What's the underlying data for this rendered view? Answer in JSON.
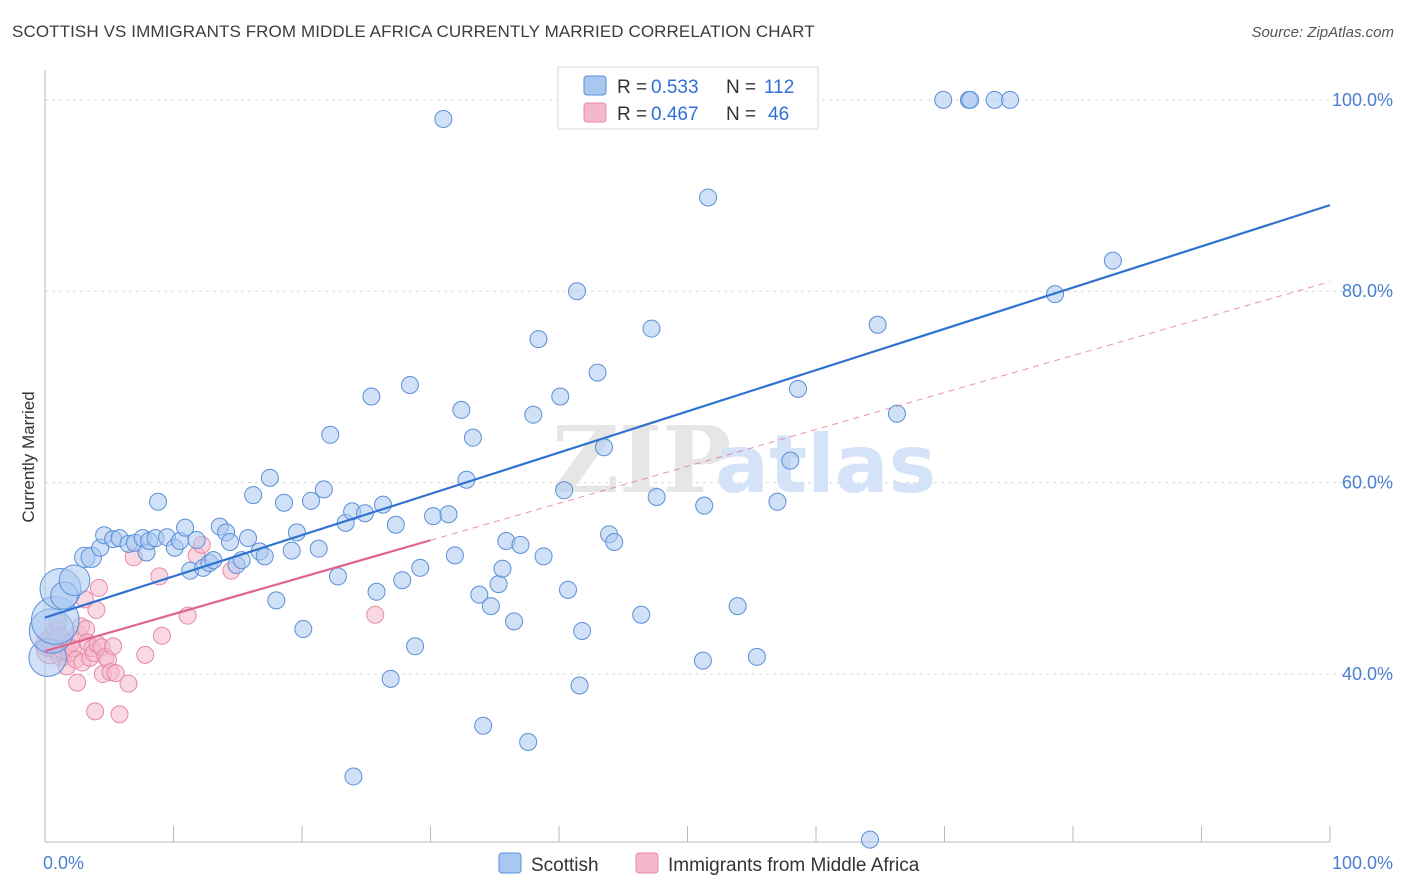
{
  "header": {
    "title": "SCOTTISH VS IMMIGRANTS FROM MIDDLE AFRICA CURRENTLY MARRIED CORRELATION CHART",
    "source": "Source: ZipAtlas.com"
  },
  "watermark": {
    "zip": "ZIP",
    "atlas": "atlas"
  },
  "legend": {
    "items": [
      {
        "r_label": "R =",
        "r_value": "0.533",
        "n_label": "N =",
        "n_value": "112"
      },
      {
        "r_label": "R =",
        "r_value": "0.467",
        "n_label": "N =",
        "n_value": "46"
      }
    ]
  },
  "bottom_legend": {
    "items": [
      {
        "label": "Scottish"
      },
      {
        "label": "Immigrants from Middle Africa"
      }
    ]
  },
  "colors": {
    "blue_fill": "#a9c8f0",
    "blue_stroke": "#5b8fd9",
    "blue_line": "#2f72d0",
    "pink_fill": "#f5b8cb",
    "pink_stroke": "#e58aa8",
    "pink_line": "#e0628e",
    "grid": "#d9d9d9",
    "tick_label": "#4a7fd0"
  },
  "chart_data": {
    "type": "scatter",
    "title": "SCOTTISH VS IMMIGRANTS FROM MIDDLE AFRICA CURRENTLY MARRIED CORRELATION CHART",
    "xlabel": "",
    "ylabel": "Currently Married",
    "xlim": [
      0,
      100
    ],
    "ylim": [
      22,
      102
    ],
    "x_tick_labels": [
      "0.0%",
      "100.0%"
    ],
    "y_ticks": [
      40,
      60,
      80,
      100
    ],
    "y_tick_labels": [
      "40.0%",
      "60.0%",
      "80.0%",
      "100.0%"
    ],
    "grid": true,
    "legend_position": "top-center",
    "series": [
      {
        "name": "Scottish",
        "color": "#a9c8f0",
        "r": 0.533,
        "n": 112,
        "trendline": {
          "x": [
            0,
            100
          ],
          "y": [
            45.9,
            89.0
          ]
        },
        "points": [
          [
            0.2,
            41.7,
            2.2
          ],
          [
            0.5,
            44.5,
            2.6
          ],
          [
            0.8,
            45.6,
            2.8
          ],
          [
            1.2,
            48.9,
            2.4
          ],
          [
            1.5,
            48.2,
            1.6
          ],
          [
            2.3,
            49.8,
            1.8
          ],
          [
            3.1,
            52.2,
            1.2
          ],
          [
            3.6,
            52.2,
            1.2
          ],
          [
            4.3,
            53.2,
            1.0
          ],
          [
            4.6,
            54.5,
            1.0
          ],
          [
            5.3,
            54.1,
            1.0
          ],
          [
            5.8,
            54.2,
            1.0
          ],
          [
            6.5,
            53.6,
            1.0
          ],
          [
            7.0,
            53.7,
            1.0
          ],
          [
            7.6,
            54.2,
            1.0
          ],
          [
            7.9,
            52.7,
            1.0
          ],
          [
            8.1,
            53.9,
            1.0
          ],
          [
            8.6,
            54.2,
            1.0
          ],
          [
            8.8,
            58.0,
            1.0
          ],
          [
            9.5,
            54.3,
            1.0
          ],
          [
            10.1,
            53.2,
            1.0
          ],
          [
            10.5,
            53.9,
            1.0
          ],
          [
            10.9,
            55.3,
            1.0
          ],
          [
            11.3,
            50.8,
            1.0
          ],
          [
            11.8,
            54.0,
            1.0
          ],
          [
            12.3,
            51.1,
            1.0
          ],
          [
            12.8,
            51.6,
            1.0
          ],
          [
            13.1,
            51.9,
            1.0
          ],
          [
            13.6,
            55.4,
            1.0
          ],
          [
            14.1,
            54.8,
            1.0
          ],
          [
            14.4,
            53.8,
            1.0
          ],
          [
            14.9,
            51.4,
            1.0
          ],
          [
            15.3,
            51.9,
            1.0
          ],
          [
            15.8,
            54.2,
            1.0
          ],
          [
            16.2,
            58.7,
            1.0
          ],
          [
            16.7,
            52.8,
            1.0
          ],
          [
            17.1,
            52.3,
            1.0
          ],
          [
            17.5,
            60.5,
            1.0
          ],
          [
            18.0,
            47.7,
            1.0
          ],
          [
            18.6,
            57.9,
            1.0
          ],
          [
            19.2,
            52.9,
            1.0
          ],
          [
            19.6,
            54.8,
            1.0
          ],
          [
            20.1,
            44.7,
            1.0
          ],
          [
            20.7,
            58.1,
            1.0
          ],
          [
            21.3,
            53.1,
            1.0
          ],
          [
            21.7,
            59.3,
            1.0
          ],
          [
            22.2,
            65.0,
            1.0
          ],
          [
            22.8,
            50.2,
            1.0
          ],
          [
            23.4,
            55.8,
            1.0
          ],
          [
            23.9,
            57.0,
            1.0
          ],
          [
            24.9,
            56.8,
            1.0
          ],
          [
            25.4,
            69.0,
            1.0
          ],
          [
            25.8,
            48.6,
            1.0
          ],
          [
            26.3,
            57.7,
            1.0
          ],
          [
            26.9,
            39.5,
            1.0
          ],
          [
            27.3,
            55.6,
            1.0
          ],
          [
            27.8,
            49.8,
            1.0
          ],
          [
            28.4,
            70.2,
            1.0
          ],
          [
            28.8,
            42.9,
            1.0
          ],
          [
            29.2,
            51.1,
            1.0
          ],
          [
            30.2,
            56.5,
            1.0
          ],
          [
            31.0,
            98.0,
            1.0
          ],
          [
            31.4,
            56.7,
            1.0
          ],
          [
            31.9,
            52.4,
            1.0
          ],
          [
            32.4,
            67.6,
            1.0
          ],
          [
            32.8,
            60.3,
            1.0
          ],
          [
            33.3,
            64.7,
            1.0
          ],
          [
            33.8,
            48.3,
            1.0
          ],
          [
            34.1,
            34.6,
            1.0
          ],
          [
            34.7,
            47.1,
            1.0
          ],
          [
            35.3,
            49.4,
            1.0
          ],
          [
            35.6,
            51.0,
            1.0
          ],
          [
            35.9,
            53.9,
            1.0
          ],
          [
            36.5,
            45.5,
            1.0
          ],
          [
            37.0,
            53.5,
            1.0
          ],
          [
            37.6,
            32.9,
            1.0
          ],
          [
            38.0,
            67.1,
            1.0
          ],
          [
            38.4,
            75.0,
            1.0
          ],
          [
            38.8,
            52.3,
            1.0
          ],
          [
            40.1,
            69.0,
            1.0
          ],
          [
            40.4,
            59.2,
            1.0
          ],
          [
            40.7,
            48.8,
            1.0
          ],
          [
            41.4,
            80.0,
            1.0
          ],
          [
            41.6,
            38.8,
            1.0
          ],
          [
            41.8,
            44.5,
            1.0
          ],
          [
            43.0,
            71.5,
            1.0
          ],
          [
            43.5,
            63.7,
            1.0
          ],
          [
            43.9,
            54.6,
            1.0
          ],
          [
            44.3,
            53.8,
            1.0
          ],
          [
            46.4,
            46.2,
            1.0
          ],
          [
            47.2,
            76.1,
            1.0
          ],
          [
            47.6,
            58.5,
            1.0
          ],
          [
            51.0,
            100.0,
            1.0
          ],
          [
            51.6,
            89.8,
            1.0
          ],
          [
            51.3,
            57.6,
            1.0
          ],
          [
            51.2,
            41.4,
            1.0
          ],
          [
            53.9,
            47.1,
            1.0
          ],
          [
            55.4,
            41.8,
            1.0
          ],
          [
            57.0,
            58.0,
            1.0
          ],
          [
            58.0,
            62.3,
            1.0
          ],
          [
            58.6,
            69.8,
            1.0
          ],
          [
            64.2,
            22.7,
            1.0
          ],
          [
            64.8,
            76.5,
            1.0
          ],
          [
            66.3,
            67.2,
            1.0
          ],
          [
            69.9,
            100.0,
            1.0
          ],
          [
            71.9,
            100.0,
            1.0
          ],
          [
            72.0,
            100.0,
            1.0
          ],
          [
            73.9,
            100.0,
            1.0
          ],
          [
            75.1,
            100.0,
            1.0
          ],
          [
            78.6,
            79.7,
            1.0
          ],
          [
            83.1,
            83.2,
            1.0
          ],
          [
            24.0,
            29.3,
            1.0
          ]
        ]
      },
      {
        "name": "Immigrants from Middle Africa",
        "color": "#f5b8cb",
        "r": 0.467,
        "n": 46,
        "trendline": {
          "x": [
            0,
            100
          ],
          "y": [
            42.4,
            81.0
          ]
        },
        "trendline_solid_x": [
          0,
          30
        ],
        "points": [
          [
            0.2,
            43.1,
            1.4
          ],
          [
            0.4,
            42.5,
            1.6
          ],
          [
            0.6,
            43.6,
            1.4
          ],
          [
            0.8,
            42.9,
            1.4
          ],
          [
            0.9,
            44.3,
            1.2
          ],
          [
            1.1,
            43.8,
            1.2
          ],
          [
            1.3,
            41.9,
            1.2
          ],
          [
            1.5,
            42.5,
            1.2
          ],
          [
            1.7,
            40.8,
            1.0
          ],
          [
            1.9,
            42.2,
            1.0
          ],
          [
            2.1,
            43.3,
            1.0
          ],
          [
            2.2,
            42.7,
            1.0
          ],
          [
            2.4,
            41.5,
            1.0
          ],
          [
            2.5,
            39.1,
            1.0
          ],
          [
            2.6,
            44.2,
            1.0
          ],
          [
            2.8,
            45.0,
            1.0
          ],
          [
            2.9,
            41.2,
            1.0
          ],
          [
            3.1,
            47.8,
            1.0
          ],
          [
            3.2,
            44.7,
            1.0
          ],
          [
            3.3,
            43.3,
            1.0
          ],
          [
            3.5,
            41.7,
            1.0
          ],
          [
            3.7,
            42.7,
            1.0
          ],
          [
            3.8,
            42.2,
            1.0
          ],
          [
            3.9,
            36.1,
            1.0
          ],
          [
            4.0,
            46.7,
            1.0
          ],
          [
            4.1,
            43.1,
            1.0
          ],
          [
            4.2,
            49.0,
            1.0
          ],
          [
            4.4,
            42.8,
            1.0
          ],
          [
            4.5,
            40.0,
            1.0
          ],
          [
            4.7,
            41.8,
            1.0
          ],
          [
            4.9,
            41.5,
            1.0
          ],
          [
            5.1,
            40.2,
            1.0
          ],
          [
            5.3,
            42.9,
            1.0
          ],
          [
            5.5,
            40.1,
            1.0
          ],
          [
            5.8,
            35.8,
            1.0
          ],
          [
            6.5,
            39.0,
            1.0
          ],
          [
            6.9,
            52.2,
            1.0
          ],
          [
            7.8,
            42.0,
            1.0
          ],
          [
            8.9,
            50.2,
            1.0
          ],
          [
            9.1,
            44.0,
            1.0
          ],
          [
            11.1,
            46.1,
            1.0
          ],
          [
            11.8,
            52.4,
            1.0
          ],
          [
            12.2,
            53.5,
            1.0
          ],
          [
            14.5,
            50.8,
            1.0
          ],
          [
            25.7,
            46.2,
            1.0
          ],
          [
            1.0,
            45.5,
            1.0
          ]
        ]
      }
    ]
  }
}
